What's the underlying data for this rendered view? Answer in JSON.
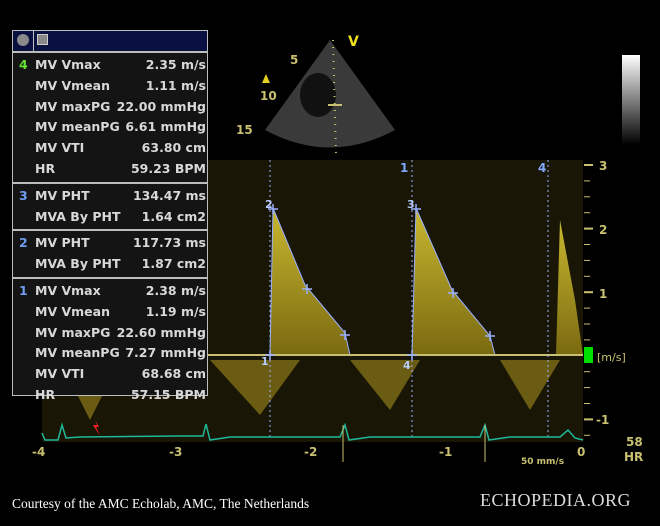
{
  "panel": {
    "groups": [
      {
        "index": "4",
        "index_color": "#66e033",
        "rows": [
          {
            "label": "MV Vmax",
            "value": "2.35 m/s"
          },
          {
            "label": "MV Vmean",
            "value": "1.11 m/s"
          },
          {
            "label": "MV maxPG",
            "value": "22.00 mmHg"
          },
          {
            "label": "MV meanPG",
            "value": "6.61 mmHg"
          },
          {
            "label": "MV VTI",
            "value": "63.80 cm"
          },
          {
            "label": "HR",
            "value": "59.23 BPM"
          }
        ]
      },
      {
        "index": "3",
        "index_color": "#6f9cf0",
        "rows": [
          {
            "label": "MV PHT",
            "value": "134.47 ms"
          },
          {
            "label": "MVA By PHT",
            "value": "1.64 cm2"
          }
        ]
      },
      {
        "index": "2",
        "index_color": "#6f9cf0",
        "rows": [
          {
            "label": "MV PHT",
            "value": "117.73 ms"
          },
          {
            "label": "MVA By PHT",
            "value": "1.87 cm2"
          }
        ]
      },
      {
        "index": "1",
        "index_color": "#6f9cf0",
        "rows": [
          {
            "label": "MV Vmax",
            "value": "2.38 m/s"
          },
          {
            "label": "MV Vmean",
            "value": "1.19 m/s"
          },
          {
            "label": "MV maxPG",
            "value": "22.60 mmHg"
          },
          {
            "label": "MV meanPG",
            "value": "7.27 mmHg"
          },
          {
            "label": "MV VTI",
            "value": "68.68 cm"
          },
          {
            "label": "HR",
            "value": "57.15 BPM"
          }
        ]
      }
    ]
  },
  "sector": {
    "depth_labels": [
      "5",
      "10",
      "15"
    ],
    "orientation_marker": "V"
  },
  "velocity_scale": {
    "ticks": [
      "3",
      "2",
      "1",
      "-1"
    ],
    "unit": "[m/s]"
  },
  "time_axis": {
    "ticks": [
      "-4",
      "-3",
      "-2",
      "-1",
      "0"
    ],
    "sweep_speed": "50 mm/s"
  },
  "heart_rate": {
    "value": "58",
    "unit": "HR"
  },
  "cursor_labels": [
    "1",
    "4"
  ],
  "markers": [
    "2",
    "1",
    "3",
    "4"
  ],
  "colors": {
    "doppler": "#d8c83a",
    "ecg": "#1fb89a",
    "scale": "#c8c070",
    "marker": "#7fa8ff",
    "baseline_indicator": "#00e000"
  },
  "caption": "Courtesy of the AMC Echolab, AMC, The Netherlands",
  "logo": "ECHOPEDIA.ORG"
}
